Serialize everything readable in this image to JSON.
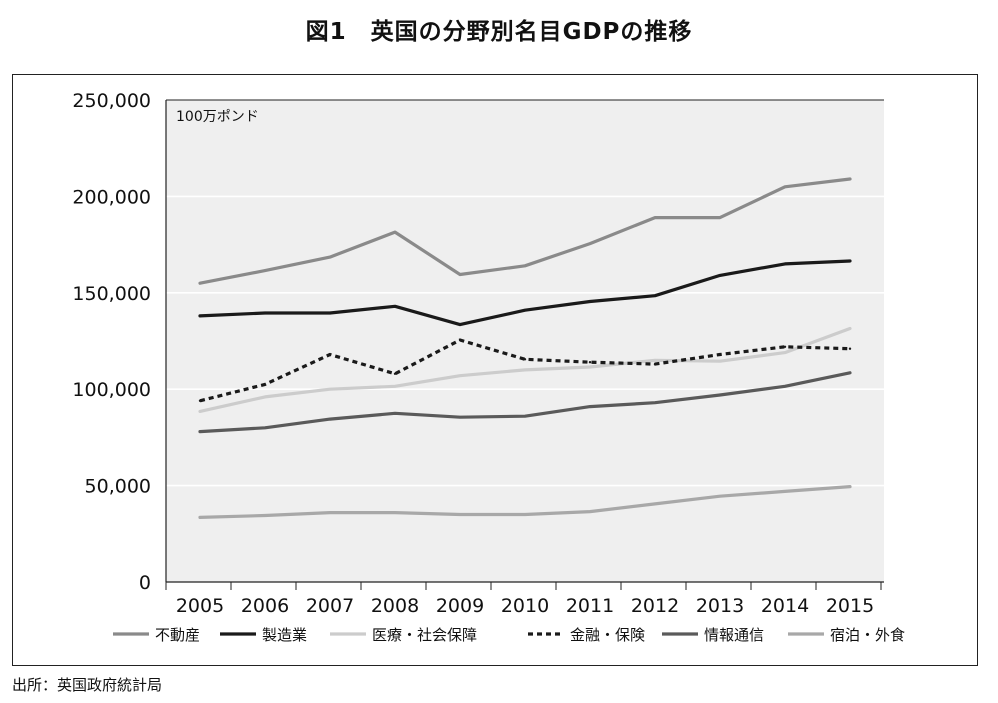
{
  "title": "図1　英国の分野別名目GDPの推移",
  "source": "出所：英国政府統計局",
  "chart_data": {
    "type": "line",
    "unit": "100万ポンド",
    "x": [
      "2005",
      "2006",
      "2007",
      "2008",
      "2009",
      "2010",
      "2011",
      "2012",
      "2013",
      "2014",
      "2015"
    ],
    "ylim": [
      0,
      250000
    ],
    "yticks": [
      0,
      50000,
      100000,
      150000,
      200000,
      250000
    ],
    "ytick_labels": [
      "0",
      "50,000",
      "100,000",
      "150,000",
      "200,000",
      "250,000"
    ],
    "grid": true,
    "legend_position": "bottom",
    "series": [
      {
        "name": "不動産",
        "color": "#8a8a8a",
        "dash": "solid",
        "values": [
          155000,
          161500,
          168500,
          181500,
          159500,
          164000,
          175500,
          189000,
          189000,
          205000,
          209000
        ]
      },
      {
        "name": "製造業",
        "color": "#1a1a1a",
        "dash": "solid",
        "values": [
          138000,
          139500,
          139500,
          143000,
          133500,
          141000,
          145500,
          148500,
          159000,
          165000,
          166500
        ]
      },
      {
        "name": "医療・社会保障",
        "color": "#cccccc",
        "dash": "solid",
        "values": [
          88500,
          96000,
          100000,
          101500,
          107000,
          110000,
          111500,
          115000,
          114500,
          119000,
          131500
        ]
      },
      {
        "name": "金融・保険",
        "color": "#1a1a1a",
        "dash": "dotted",
        "values": [
          94000,
          102500,
          118000,
          108000,
          125500,
          115500,
          114000,
          113000,
          118000,
          122000,
          121000
        ]
      },
      {
        "name": "情報通信",
        "color": "#5a5a5a",
        "dash": "solid",
        "values": [
          78000,
          80000,
          84500,
          87500,
          85500,
          86000,
          91000,
          93000,
          97000,
          101500,
          108500
        ]
      },
      {
        "name": "宿泊・外食",
        "color": "#a8a8a8",
        "dash": "solid",
        "values": [
          33500,
          34500,
          36000,
          36000,
          35000,
          35000,
          36500,
          40500,
          44500,
          47000,
          49500
        ]
      }
    ]
  }
}
